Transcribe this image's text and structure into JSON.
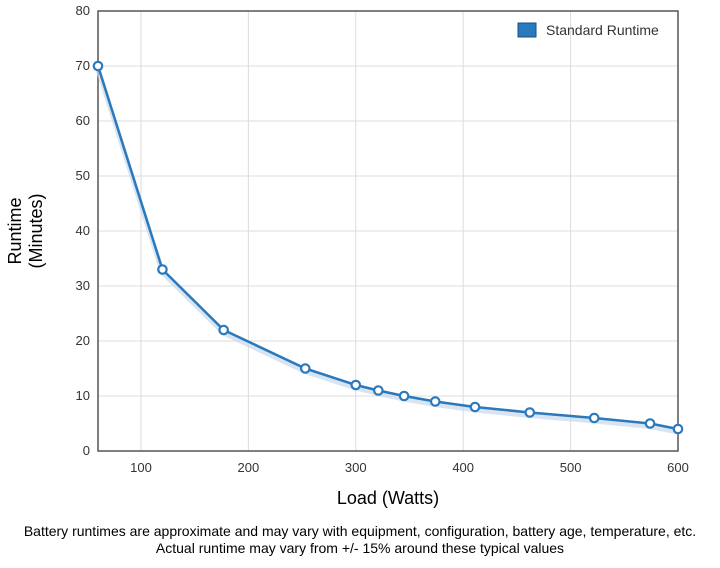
{
  "chart_data": {
    "type": "line",
    "xlabel": "Load (Watts)",
    "ylabel_lines": [
      "Runtime",
      "(Minutes)"
    ],
    "xlim": [
      60,
      600
    ],
    "ylim": [
      0,
      80
    ],
    "xticks": [
      100,
      200,
      300,
      400,
      500,
      600
    ],
    "yticks": [
      0,
      10,
      20,
      30,
      40,
      50,
      60,
      70,
      80
    ],
    "grid": true,
    "legend_position": "top-right",
    "series": [
      {
        "name": "Standard Runtime",
        "color": "#2a79bd",
        "points": [
          {
            "x": 60,
            "y": 70
          },
          {
            "x": 120,
            "y": 33
          },
          {
            "x": 177,
            "y": 22
          },
          {
            "x": 253,
            "y": 15
          },
          {
            "x": 300,
            "y": 12
          },
          {
            "x": 321,
            "y": 11
          },
          {
            "x": 345,
            "y": 10
          },
          {
            "x": 374,
            "y": 9
          },
          {
            "x": 411,
            "y": 8
          },
          {
            "x": 462,
            "y": 7
          },
          {
            "x": 522,
            "y": 6
          },
          {
            "x": 574,
            "y": 5
          },
          {
            "x": 600,
            "y": 4
          }
        ]
      }
    ]
  },
  "footnote": {
    "line1": "Battery runtimes are approximate and may vary with equipment, configuration, battery age, temperature, etc.",
    "line2": "Actual runtime may vary from +/- 15% around these typical values"
  }
}
